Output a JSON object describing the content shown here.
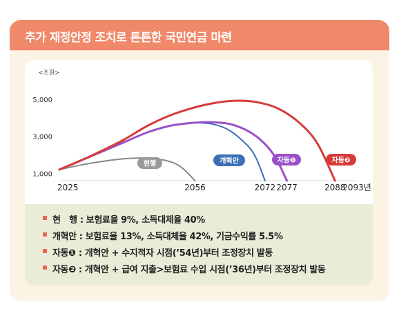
{
  "header": {
    "title": "추가 재정안정 조치로 튼튼한 국민연금 마련"
  },
  "chart_data": {
    "type": "line",
    "title": "",
    "ylabel": "<조원>",
    "xlabel": "",
    "ylim": [
      0,
      5000
    ],
    "yticks": [
      1000,
      3000,
      5000
    ],
    "ytick_labels": [
      "1,000",
      "3,000",
      "5,000"
    ],
    "xticks": [
      {
        "label": "2025",
        "x": 2025
      },
      {
        "label": "2056",
        "x": 2056
      },
      {
        "label": "2072",
        "x": 2072
      },
      {
        "label": "2077",
        "x": 2077
      },
      {
        "label": "2088",
        "x": 2088
      },
      {
        "label": "2093년",
        "x": 2093
      }
    ],
    "grid": false,
    "series": [
      {
        "name": "현행",
        "color": "#888888",
        "points": [
          [
            2025,
            1200
          ],
          [
            2030,
            1450
          ],
          [
            2035,
            1650
          ],
          [
            2040,
            1790
          ],
          [
            2045,
            1820
          ],
          [
            2050,
            1650
          ],
          [
            2053,
            1300
          ],
          [
            2056,
            600
          ]
        ]
      },
      {
        "name": "개혁안",
        "color": "#3b6fb6",
        "points": [
          [
            2025,
            1200
          ],
          [
            2030,
            1700
          ],
          [
            2035,
            2200
          ],
          [
            2040,
            2700
          ],
          [
            2045,
            3200
          ],
          [
            2050,
            3550
          ],
          [
            2055,
            3720
          ],
          [
            2060,
            3660
          ],
          [
            2064,
            3300
          ],
          [
            2068,
            2500
          ],
          [
            2070,
            1800
          ],
          [
            2072,
            600
          ]
        ]
      },
      {
        "name": "자동❶",
        "color": "#9a4fc9",
        "points": [
          [
            2025,
            1200
          ],
          [
            2030,
            1700
          ],
          [
            2035,
            2200
          ],
          [
            2040,
            2700
          ],
          [
            2045,
            3200
          ],
          [
            2050,
            3550
          ],
          [
            2055,
            3720
          ],
          [
            2060,
            3760
          ],
          [
            2065,
            3600
          ],
          [
            2070,
            3000
          ],
          [
            2074,
            2000
          ],
          [
            2077,
            600
          ]
        ]
      },
      {
        "name": "자동❷",
        "color": "#d63a3a",
        "points": [
          [
            2025,
            1200
          ],
          [
            2030,
            1700
          ],
          [
            2035,
            2250
          ],
          [
            2040,
            2850
          ],
          [
            2045,
            3550
          ],
          [
            2050,
            4100
          ],
          [
            2055,
            4500
          ],
          [
            2060,
            4780
          ],
          [
            2065,
            4920
          ],
          [
            2070,
            4850
          ],
          [
            2075,
            4500
          ],
          [
            2080,
            3700
          ],
          [
            2084,
            2600
          ],
          [
            2088,
            600
          ]
        ]
      }
    ],
    "annotations": [
      {
        "text": "현행",
        "series": "현행"
      },
      {
        "text": "개혁안",
        "series": "개혁안"
      },
      {
        "text": "자동❶",
        "series": "자동❶"
      },
      {
        "text": "자동❷",
        "series": "자동❷"
      }
    ]
  },
  "notes": [
    {
      "label": "현　행",
      "text": "현　행 : 보험료율 9%, 소득대체율 40%"
    },
    {
      "label": "개혁안",
      "text": "개혁안 : 보험료율 13%, 소득대체율 42%, 기금수익률 5.5%"
    },
    {
      "label": "자동❶",
      "text": "자동❶ : 개혁안 + 수지적자 시점(’54년)부터 조정장치 발동"
    },
    {
      "label": "자동❷",
      "text": "자동❷ : 개혁안 + 급여 지출>보험료 수입 시점(’36년)부터 조정장치 발동"
    }
  ]
}
